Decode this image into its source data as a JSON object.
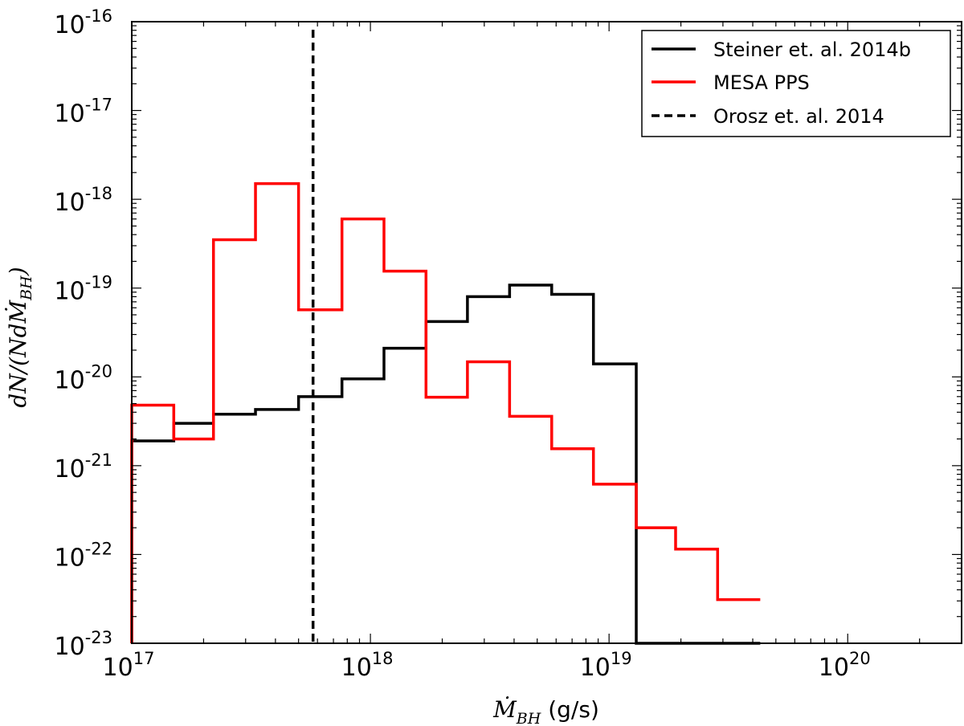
{
  "chart_data": {
    "type": "histogram",
    "xscale": "log",
    "yscale": "log",
    "xlim": [
      1e+17,
      3e+20
    ],
    "ylim": [
      1e-23,
      1e-16
    ],
    "xlabel": {
      "math": "Ṁ",
      "sub": "BH",
      "unit": " (g/s)"
    },
    "ylabel": {
      "text": "dN/(NdṀ",
      "sub": "BH",
      "close": ")"
    },
    "xticks": [
      {
        "base": "10",
        "exp": "17",
        "value": 1e+17
      },
      {
        "base": "10",
        "exp": "18",
        "value": 1e+18
      },
      {
        "base": "10",
        "exp": "19",
        "value": 1e+19
      },
      {
        "base": "10",
        "exp": "20",
        "value": 1e+20
      }
    ],
    "yticks": [
      {
        "base": "10",
        "exp": "-16",
        "value": 1e-16
      },
      {
        "base": "10",
        "exp": "-17",
        "value": 1e-17
      },
      {
        "base": "10",
        "exp": "-18",
        "value": 1e-18
      },
      {
        "base": "10",
        "exp": "-19",
        "value": 1e-19
      },
      {
        "base": "10",
        "exp": "-20",
        "value": 1e-20
      },
      {
        "base": "10",
        "exp": "-21",
        "value": 1e-21
      },
      {
        "base": "10",
        "exp": "-22",
        "value": 1e-22
      },
      {
        "base": "10",
        "exp": "-23",
        "value": 1e-23
      }
    ],
    "bin_edges": [
      1e+17,
      1.5e+17,
      2.2e+17,
      3.3e+17,
      5e+17,
      7.6e+17,
      1.14e+18,
      1.71e+18,
      2.55e+18,
      3.83e+18,
      5.75e+18,
      8.6e+18,
      1.3e+19,
      1.9e+19,
      2.85e+19,
      4.3e+19
    ],
    "series": [
      {
        "name": "Steiner et. al. 2014b",
        "color": "#000000",
        "style": "solid",
        "values": [
          1.9e-21,
          3e-21,
          3.8e-21,
          4.3e-21,
          6e-21,
          9.5e-21,
          2.1e-20,
          4.2e-20,
          8e-20,
          1.08e-19,
          8.5e-20,
          1.4e-20,
          0,
          0,
          0
        ]
      },
      {
        "name": "MESA PPS",
        "color": "#ff0000",
        "style": "solid",
        "values": [
          4.8e-21,
          2e-21,
          3.5e-19,
          1.5e-18,
          5.7e-20,
          6e-19,
          1.55e-19,
          5.9e-21,
          1.48e-20,
          3.6e-21,
          1.55e-21,
          6.2e-22,
          2e-22,
          1.15e-22,
          3.1e-23
        ]
      },
      {
        "name": "Orosz et. al. 2014",
        "color": "#000000",
        "style": "dashed",
        "vline": 5.75e+17
      }
    ],
    "legend_position": "top-right"
  }
}
